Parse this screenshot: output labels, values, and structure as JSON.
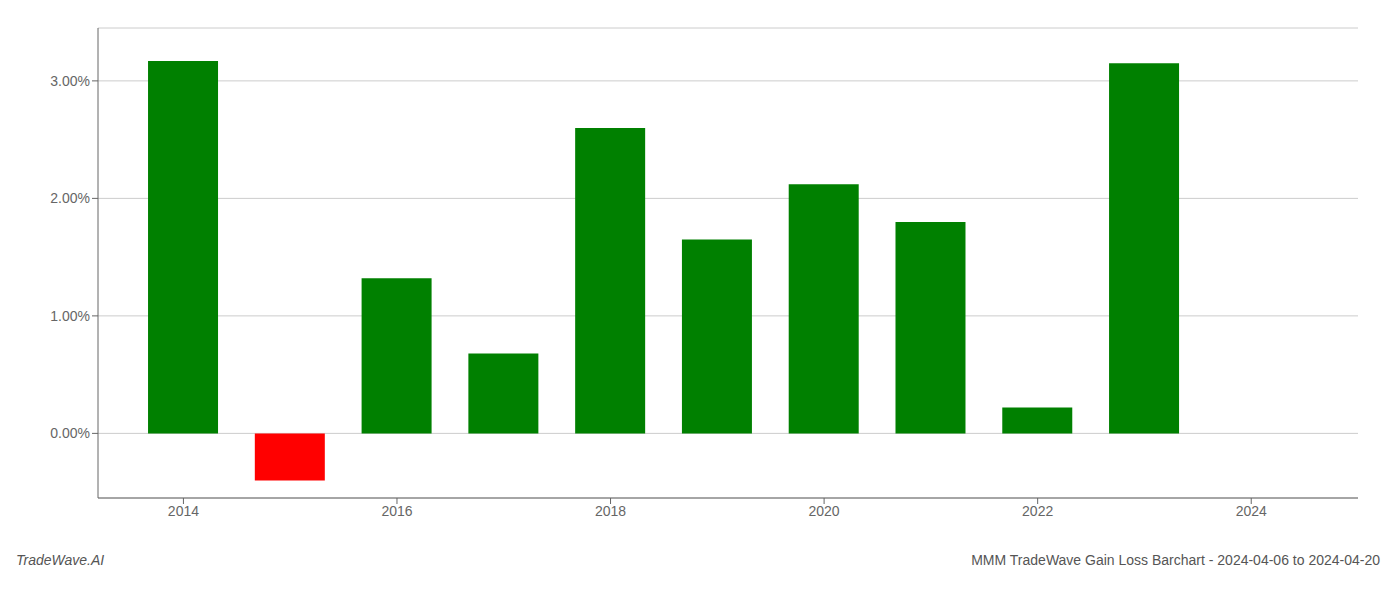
{
  "chart_data": {
    "type": "bar",
    "x": [
      2014,
      2015,
      2016,
      2017,
      2018,
      2019,
      2020,
      2021,
      2022,
      2023
    ],
    "values": [
      3.17,
      -0.4,
      1.32,
      0.68,
      2.6,
      1.65,
      2.12,
      1.8,
      0.22,
      3.15
    ],
    "colors": [
      "#008000",
      "#ff0000",
      "#008000",
      "#008000",
      "#008000",
      "#008000",
      "#008000",
      "#008000",
      "#008000",
      "#008000"
    ],
    "xlim": [
      2013.2,
      2025.0
    ],
    "xticks": [
      2014,
      2016,
      2018,
      2020,
      2022,
      2024
    ],
    "ylim": [
      -0.55,
      3.45
    ],
    "yticks": [
      {
        "value": 0.0,
        "label": "0.00%"
      },
      {
        "value": 1.0,
        "label": "1.00%"
      },
      {
        "value": 2.0,
        "label": "2.00%"
      },
      {
        "value": 3.0,
        "label": "3.00%"
      }
    ],
    "grid": true,
    "annotations": [
      "TradeWave.AI",
      "MMM TradeWave Gain Loss Barchart - 2024-04-06 to 2024-04-20"
    ]
  }
}
